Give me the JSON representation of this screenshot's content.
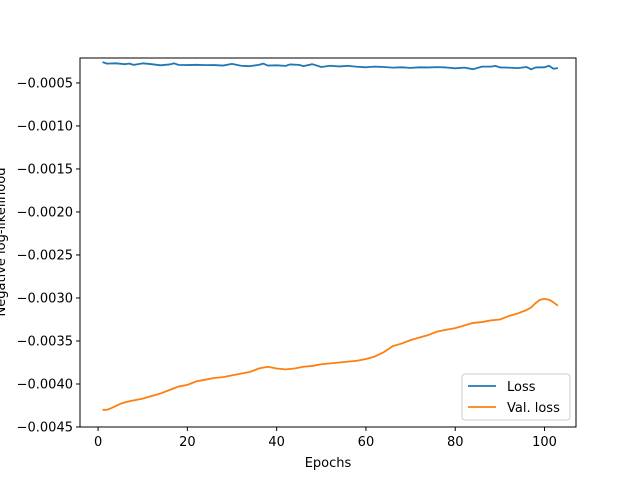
{
  "chart_data": {
    "type": "line",
    "xlabel": "Epochs",
    "ylabel": "Negative log-likelihood",
    "xlim": [
      -4.05,
      107.05
    ],
    "ylim": [
      -0.0045,
      -0.00021
    ],
    "xticks": [
      0,
      20,
      40,
      60,
      80,
      100
    ],
    "xtick_labels": [
      "0",
      "20",
      "40",
      "60",
      "80",
      "100"
    ],
    "yticks": [
      -0.0045,
      -0.004,
      -0.0035,
      -0.003,
      -0.0025,
      -0.002,
      -0.0015,
      -0.001,
      -0.0005
    ],
    "ytick_labels": [
      "−0.0045",
      "−0.0040",
      "−0.0035",
      "−0.0030",
      "−0.0025",
      "−0.0020",
      "−0.0015",
      "−0.0010",
      "−0.0005"
    ],
    "legend_position": "lower-right",
    "series": [
      {
        "name": "Loss",
        "color": "#1f77b4",
        "points": [
          [
            1,
            -0.000258
          ],
          [
            2,
            -0.000275
          ],
          [
            4,
            -0.000272
          ],
          [
            6,
            -0.000282
          ],
          [
            7,
            -0.000275
          ],
          [
            8,
            -0.00029
          ],
          [
            10,
            -0.000272
          ],
          [
            12,
            -0.000282
          ],
          [
            14,
            -0.000295
          ],
          [
            16,
            -0.000285
          ],
          [
            17,
            -0.000272
          ],
          [
            18,
            -0.00029
          ],
          [
            20,
            -0.000292
          ],
          [
            22,
            -0.000289
          ],
          [
            24,
            -0.000293
          ],
          [
            26,
            -0.000292
          ],
          [
            28,
            -0.000298
          ],
          [
            30,
            -0.000278
          ],
          [
            32,
            -0.0003
          ],
          [
            34,
            -0.000305
          ],
          [
            36,
            -0.00029
          ],
          [
            37,
            -0.000275
          ],
          [
            38,
            -0.000298
          ],
          [
            40,
            -0.000295
          ],
          [
            42,
            -0.000302
          ],
          [
            43,
            -0.000285
          ],
          [
            45,
            -0.00029
          ],
          [
            46,
            -0.000305
          ],
          [
            48,
            -0.000282
          ],
          [
            50,
            -0.000315
          ],
          [
            52,
            -0.0003
          ],
          [
            54,
            -0.000308
          ],
          [
            56,
            -0.000302
          ],
          [
            58,
            -0.000312
          ],
          [
            60,
            -0.000318
          ],
          [
            62,
            -0.00031
          ],
          [
            64,
            -0.000315
          ],
          [
            66,
            -0.000322
          ],
          [
            68,
            -0.000318
          ],
          [
            70,
            -0.000325
          ],
          [
            72,
            -0.000318
          ],
          [
            74,
            -0.00032
          ],
          [
            76,
            -0.000316
          ],
          [
            78,
            -0.00032
          ],
          [
            80,
            -0.00033
          ],
          [
            82,
            -0.000322
          ],
          [
            84,
            -0.00034
          ],
          [
            86,
            -0.00031
          ],
          [
            88,
            -0.00031
          ],
          [
            89,
            -0.000302
          ],
          [
            90,
            -0.00032
          ],
          [
            92,
            -0.000322
          ],
          [
            94,
            -0.000328
          ],
          [
            96,
            -0.000315
          ],
          [
            97,
            -0.000342
          ],
          [
            98,
            -0.00032
          ],
          [
            100,
            -0.000318
          ],
          [
            101,
            -0.0003
          ],
          [
            102,
            -0.000335
          ],
          [
            103,
            -0.000328
          ]
        ]
      },
      {
        "name": "Val. loss",
        "color": "#ff7f0e",
        "points": [
          [
            1,
            -0.0043
          ],
          [
            2,
            -0.0043
          ],
          [
            3,
            -0.00428
          ],
          [
            5,
            -0.00423
          ],
          [
            7,
            -0.0042
          ],
          [
            10,
            -0.00417
          ],
          [
            12,
            -0.00414
          ],
          [
            14,
            -0.00411
          ],
          [
            16,
            -0.00407
          ],
          [
            18,
            -0.00403
          ],
          [
            20,
            -0.00401
          ],
          [
            22,
            -0.00397
          ],
          [
            24,
            -0.00395
          ],
          [
            26,
            -0.00393
          ],
          [
            28,
            -0.00392
          ],
          [
            30,
            -0.0039
          ],
          [
            32,
            -0.00388
          ],
          [
            34,
            -0.00386
          ],
          [
            36,
            -0.00382
          ],
          [
            38,
            -0.0038
          ],
          [
            40,
            -0.00382
          ],
          [
            42,
            -0.00383
          ],
          [
            44,
            -0.00382
          ],
          [
            46,
            -0.0038
          ],
          [
            48,
            -0.00379
          ],
          [
            50,
            -0.00377
          ],
          [
            52,
            -0.00376
          ],
          [
            54,
            -0.00375
          ],
          [
            56,
            -0.00374
          ],
          [
            58,
            -0.00373
          ],
          [
            60,
            -0.00371
          ],
          [
            62,
            -0.00368
          ],
          [
            64,
            -0.00363
          ],
          [
            66,
            -0.00356
          ],
          [
            68,
            -0.00353
          ],
          [
            70,
            -0.00349
          ],
          [
            72,
            -0.00346
          ],
          [
            74,
            -0.00343
          ],
          [
            76,
            -0.00339
          ],
          [
            78,
            -0.00337
          ],
          [
            80,
            -0.00335
          ],
          [
            82,
            -0.00332
          ],
          [
            84,
            -0.00329
          ],
          [
            86,
            -0.00328
          ],
          [
            88,
            -0.00326
          ],
          [
            90,
            -0.00325
          ],
          [
            92,
            -0.00321
          ],
          [
            94,
            -0.00318
          ],
          [
            96,
            -0.00314
          ],
          [
            97,
            -0.00311
          ],
          [
            98,
            -0.00306
          ],
          [
            99,
            -0.00302
          ],
          [
            100,
            -0.00301
          ],
          [
            101,
            -0.00302
          ],
          [
            102,
            -0.00305
          ],
          [
            103,
            -0.00309
          ]
        ]
      }
    ]
  }
}
